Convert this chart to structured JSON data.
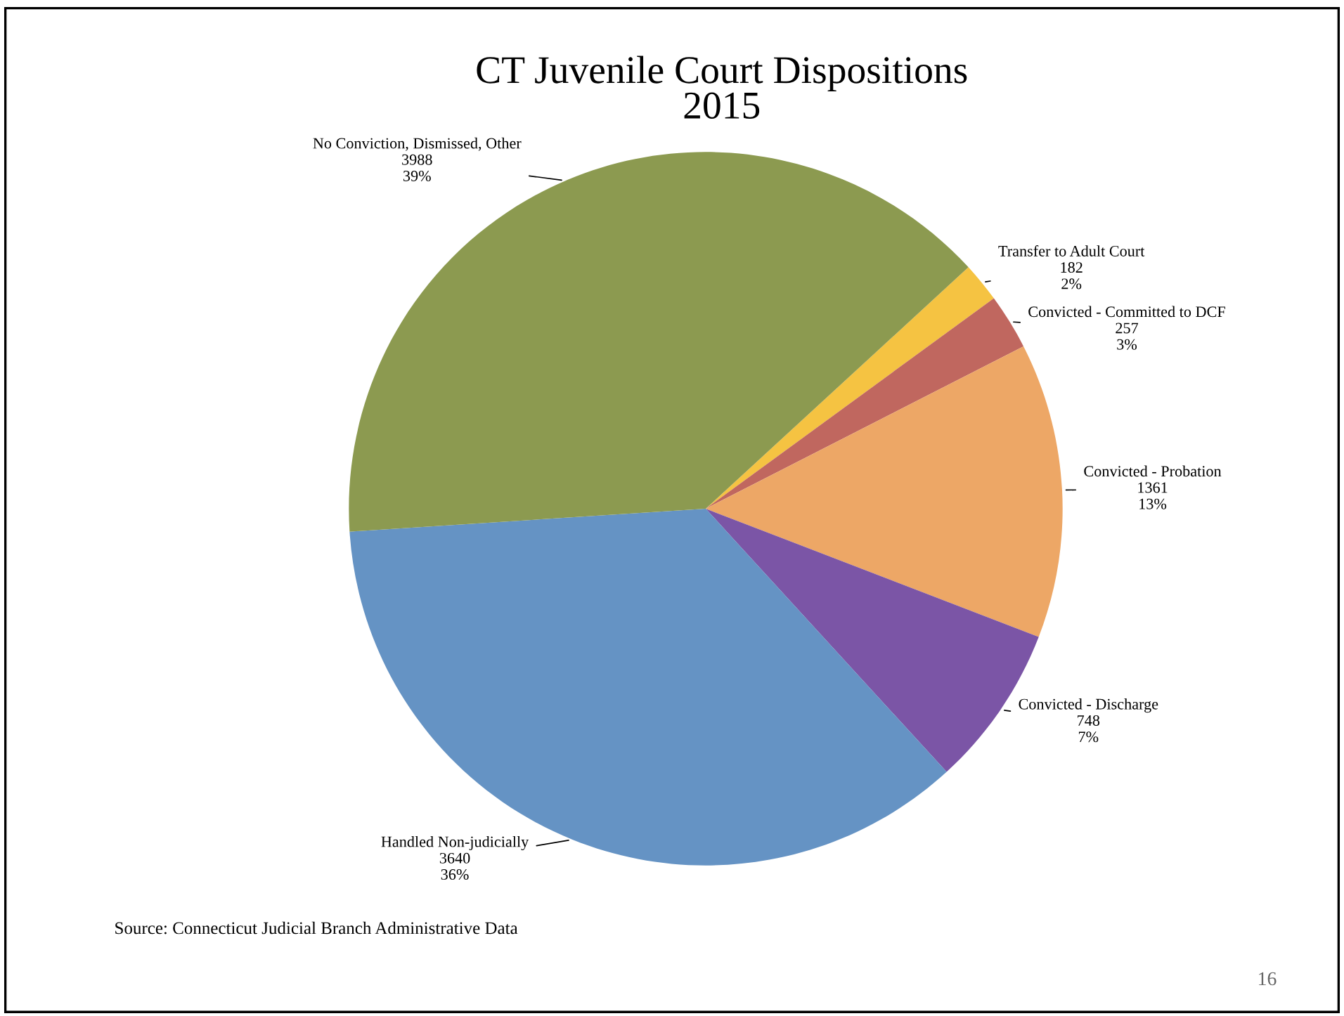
{
  "chart_data": {
    "type": "pie",
    "title": "CT Juvenile Court Dispositions\n2015",
    "categories": [
      "Transfer to Adult Court",
      "Convicted - Committed to DCF",
      "Convicted - Probation",
      "Convicted - Discharge",
      "Handled Non-judicially",
      "No Conviction, Dismissed, Other"
    ],
    "values": [
      182,
      257,
      1361,
      748,
      3640,
      3988
    ],
    "value_labels": [
      "182\n2%",
      "257\n3%",
      "1361\n13%",
      "748\n7%",
      "3640\n36%",
      "3988\n39%"
    ],
    "colors": [
      "#f5c342",
      "#c0675f",
      "#eda766",
      "#7b55a6",
      "#6593c4",
      "#8c9a50"
    ],
    "annotations": [
      "Source: Connecticut Judicial Branch Administrative Data",
      "16"
    ]
  }
}
